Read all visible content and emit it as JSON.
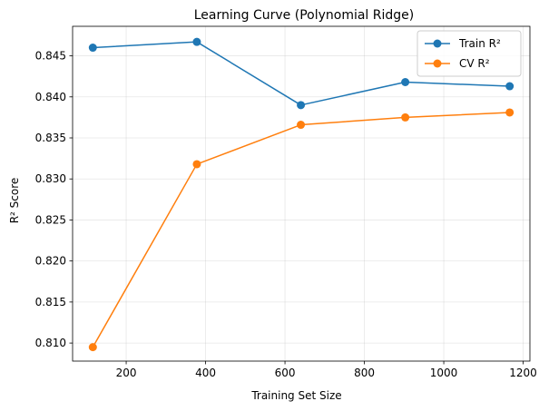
{
  "chart_data": {
    "type": "line",
    "title": "Learning Curve (Polynomial Ridge)",
    "xlabel": "Training Set Size",
    "ylabel": "R² Score",
    "x": [
      116,
      378,
      640,
      903,
      1166
    ],
    "xlim": [
      65,
      1217
    ],
    "ylim": [
      0.8078,
      0.8486
    ],
    "xticks": [
      200,
      400,
      600,
      800,
      1000,
      1200
    ],
    "yticks": [
      0.81,
      0.815,
      0.82,
      0.825,
      0.83,
      0.835,
      0.84,
      0.845
    ],
    "xtick_labels": [
      "200",
      "400",
      "600",
      "800",
      "1000",
      "1200"
    ],
    "ytick_labels": [
      "0.810",
      "0.815",
      "0.820",
      "0.825",
      "0.830",
      "0.835",
      "0.840",
      "0.845"
    ],
    "grid": true,
    "legend_position": "top-right",
    "series": [
      {
        "name": "Train R²",
        "color": "#1f77b4",
        "values": [
          0.846,
          0.8467,
          0.839,
          0.8418,
          0.8413
        ]
      },
      {
        "name": "CV R²",
        "color": "#ff7f0e",
        "values": [
          0.8095,
          0.8318,
          0.8366,
          0.8375,
          0.8381
        ]
      }
    ]
  }
}
